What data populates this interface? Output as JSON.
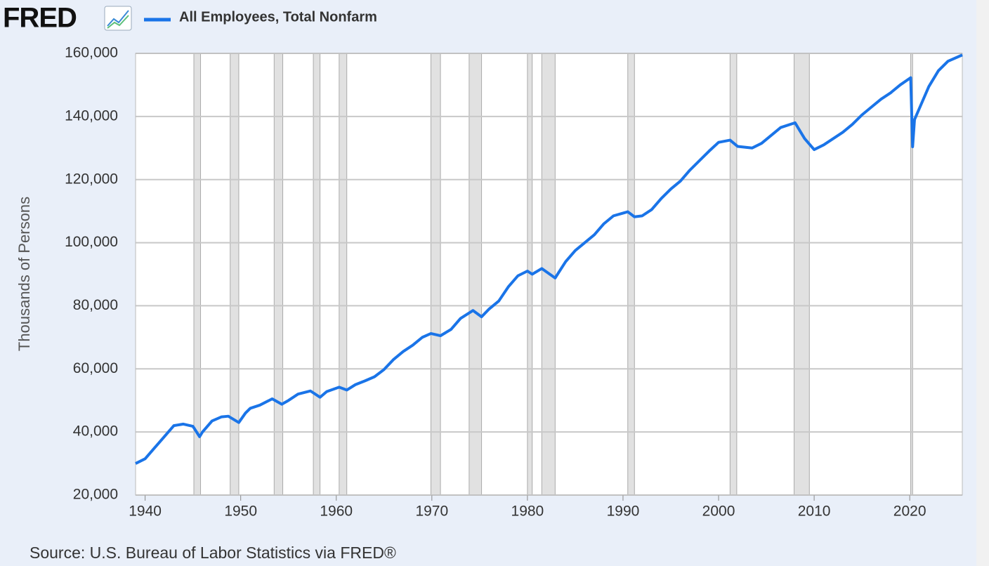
{
  "chart_data": {
    "type": "line",
    "logo": "FRED",
    "y_label": "Thousands of Persons",
    "source": "Source: U.S. Bureau of Labor Statistics via FRED®",
    "grid": true,
    "xlim": [
      1939,
      2025.5
    ],
    "xticks": [
      1940,
      1950,
      1960,
      1970,
      1980,
      1990,
      2000,
      2010,
      2020
    ],
    "ylim": [
      20000,
      160000
    ],
    "yticks": [
      {
        "value": 20000,
        "label": "20,000"
      },
      {
        "value": 40000,
        "label": "40,000"
      },
      {
        "value": 60000,
        "label": "60,000"
      },
      {
        "value": 80000,
        "label": "80,000"
      },
      {
        "value": 100000,
        "label": "100,000"
      },
      {
        "value": 120000,
        "label": "120,000"
      },
      {
        "value": 140000,
        "label": "140,000"
      },
      {
        "value": 160000,
        "label": "160,000"
      }
    ],
    "recessions": [
      [
        1945.1,
        1945.8
      ],
      [
        1948.9,
        1949.8
      ],
      [
        1953.5,
        1954.4
      ],
      [
        1957.6,
        1958.3
      ],
      [
        1960.3,
        1961.1
      ],
      [
        1969.9,
        1970.9
      ],
      [
        1973.9,
        1975.2
      ],
      [
        1980.0,
        1980.5
      ],
      [
        1981.5,
        1982.9
      ],
      [
        1990.5,
        1991.2
      ],
      [
        2001.2,
        2001.9
      ],
      [
        2007.9,
        2009.5
      ],
      [
        2020.1,
        2020.3
      ]
    ],
    "recession_color": "#e1e1e1",
    "x": [
      1939.0,
      1940.0,
      1941.0,
      1942.0,
      1943.0,
      1944.0,
      1945.0,
      1945.7,
      1946.0,
      1947.0,
      1948.0,
      1948.7,
      1949.8,
      1950.5,
      1951.0,
      1952.0,
      1953.3,
      1954.3,
      1955.0,
      1956.0,
      1957.3,
      1958.3,
      1959.0,
      1960.3,
      1961.1,
      1962.0,
      1963.0,
      1964.0,
      1965.0,
      1966.0,
      1967.0,
      1968.0,
      1969.0,
      1969.9,
      1970.9,
      1972.0,
      1973.0,
      1974.3,
      1975.2,
      1976.0,
      1977.0,
      1978.0,
      1979.0,
      1980.0,
      1980.5,
      1981.5,
      1982.9,
      1984.0,
      1985.0,
      1986.0,
      1987.0,
      1988.0,
      1989.0,
      1990.5,
      1991.2,
      1992.0,
      1993.0,
      1994.0,
      1995.0,
      1996.0,
      1997.0,
      1998.0,
      1999.0,
      2000.0,
      2001.2,
      2002.0,
      2003.5,
      2004.5,
      2005.5,
      2006.5,
      2008.0,
      2009.0,
      2010.0,
      2011.0,
      2012.0,
      2013.0,
      2014.0,
      2015.0,
      2016.0,
      2017.0,
      2018.0,
      2019.0,
      2020.1,
      2020.3,
      2020.5,
      2021.0,
      2022.0,
      2023.0,
      2024.0,
      2025.5
    ],
    "series": [
      {
        "name": "All Employees, Total Nonfarm",
        "color": "#1a74e8",
        "values": [
          30000,
          31500,
          35000,
          38500,
          42000,
          42500,
          41800,
          38500,
          40000,
          43500,
          44800,
          45000,
          43000,
          46000,
          47500,
          48500,
          50500,
          48800,
          50000,
          52000,
          53000,
          51000,
          52800,
          54200,
          53300,
          55000,
          56200,
          57500,
          59800,
          63000,
          65500,
          67500,
          70000,
          71200,
          70500,
          72500,
          76000,
          78500,
          76500,
          79000,
          81500,
          86000,
          89500,
          91000,
          90000,
          91800,
          88800,
          94000,
          97500,
          100000,
          102500,
          106000,
          108500,
          109800,
          108200,
          108500,
          110500,
          114000,
          117000,
          119500,
          123000,
          126000,
          129000,
          131800,
          132500,
          130500,
          130000,
          131500,
          134000,
          136500,
          138000,
          133000,
          129500,
          131000,
          133000,
          135000,
          137500,
          140500,
          143000,
          145500,
          147500,
          150000,
          152300,
          130400,
          139000,
          142500,
          149500,
          154500,
          157500,
          159500
        ]
      }
    ]
  }
}
